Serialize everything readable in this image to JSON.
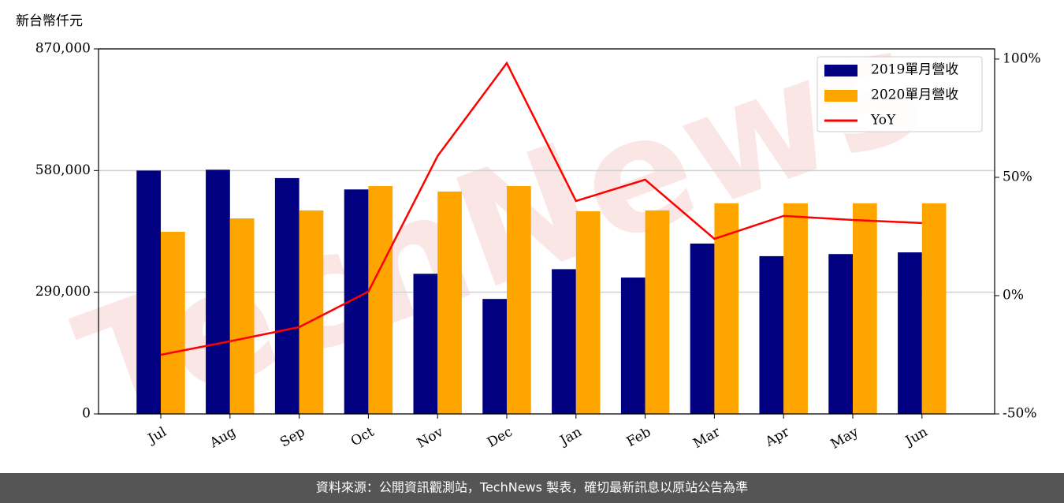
{
  "chart_data": {
    "type": "bar_line",
    "unit_label": "新台幣仟元",
    "watermark": "TechNews",
    "categories": [
      "Jul",
      "Aug",
      "Sep",
      "Oct",
      "Nov",
      "Dec",
      "Jan",
      "Feb",
      "Mar",
      "Apr",
      "May",
      "Jun"
    ],
    "series": [
      {
        "name": "2019單月營收",
        "type": "bar",
        "color": "#000080",
        "values": [
          580000,
          582000,
          562000,
          535000,
          334000,
          274000,
          345000,
          325000,
          406000,
          376000,
          381000,
          385000
        ]
      },
      {
        "name": "2020單月營收",
        "type": "bar",
        "color": "#ffa500",
        "values": [
          434000,
          466000,
          485000,
          543000,
          530000,
          543000,
          483000,
          485000,
          502000,
          502000,
          502000,
          502000
        ]
      },
      {
        "name": "YoY",
        "type": "line",
        "axis": "y2",
        "color": "#ff0000",
        "values": [
          -25,
          -19.3,
          -13.3,
          1.7,
          59,
          98.3,
          40,
          49,
          24,
          33.7,
          32,
          30.7
        ]
      }
    ],
    "ylim": [
      0,
      870000
    ],
    "yticks": [
      0,
      {
        "value": 290000,
        "label": "290,000"
      },
      {
        "value": 580000,
        "label": "580,000"
      },
      {
        "value": 870000,
        "label": "870,000"
      }
    ],
    "y2lim": [
      -50,
      104.3
    ],
    "y2ticks": [
      {
        "value": -50,
        "label": "-50%"
      },
      {
        "value": 0,
        "label": "0%"
      },
      {
        "value": 50,
        "label": "50%"
      },
      {
        "value": 100,
        "label": "100%"
      }
    ],
    "grid": true,
    "legend": "upper right"
  },
  "footer": "資料來源：公開資訊觀測站，TechNews 製表，確切最新訊息以原站公告為準"
}
